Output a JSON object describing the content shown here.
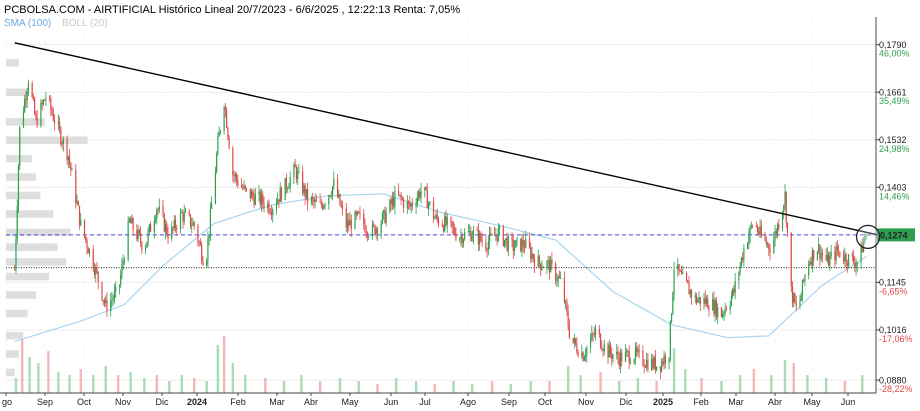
{
  "header": {
    "title": "PCBOLSA.COM - AIRTIFICIAL Histórico Lineal 20/7/2023 - 6/6/2025 , 12:22:13 Renta: 7,05%",
    "sma_label": "SMA (100)",
    "boll_label": "BOLL (20)"
  },
  "colors": {
    "up": "#2e9e4e",
    "down": "#e04848",
    "sma": "#a8d4f0",
    "trendline": "#000000",
    "resistance": "#4a4ae0",
    "support": "#000000",
    "price_box": "#2e9e4e",
    "pct_pos": "#2e9e4e",
    "pct_neg": "#e04848",
    "profile": "#d8d8d8",
    "boll_text": "#c8c8c8"
  },
  "chart_data": {
    "type": "candlestick",
    "title": "PCBOLSA.COM - AIRTIFICIAL Histórico Lineal 20/7/2023 - 6/6/2025 , 12:22:13 Renta: 7,05%",
    "x_ticks": [
      "go",
      "Sep",
      "Oct",
      "Nov",
      "Dic",
      "2024",
      "Feb",
      "Mar",
      "Abr",
      "May",
      "Jun",
      "Jul",
      "Ago",
      "Sep",
      "Oct",
      "Nov",
      "Dic",
      "2025",
      "Feb",
      "Mar",
      "Abr",
      "May",
      "Jun"
    ],
    "ylim": [
      0.0845,
      0.1865
    ],
    "y_ticks": [
      {
        "value": 0.179,
        "label": "0,1790",
        "pct": "46,00%"
      },
      {
        "value": 0.1661,
        "label": "0,1661",
        "pct": "35,49%"
      },
      {
        "value": 0.1532,
        "label": "0,1532",
        "pct": "24,98%"
      },
      {
        "value": 0.1403,
        "label": "0,1403",
        "pct": "14,46%"
      },
      {
        "value": 0.1274,
        "label": "0,1274",
        "pct": ""
      },
      {
        "value": 0.1145,
        "label": "0,1145",
        "pct": "-6,65%"
      },
      {
        "value": 0.1016,
        "label": "0,1016",
        "pct": "-17,06%"
      },
      {
        "value": 0.088,
        "label": "0,0880",
        "pct": "-28,22%"
      }
    ],
    "last_price": {
      "value": 0.1274,
      "label": "0,1274"
    },
    "resistance": 0.1274,
    "support": 0.1185,
    "trendline": {
      "start": {
        "x": "2023-07-24",
        "y": 0.1795
      },
      "end": {
        "x": "2025-06-06",
        "y": 0.1278
      }
    },
    "sma_series": {
      "name": "SMA (100)",
      "points": [
        {
          "x": "2023-07-24",
          "y": 0.0985
        },
        {
          "x": "2023-09-15",
          "y": 0.104
        },
        {
          "x": "2023-10-20",
          "y": 0.1085
        },
        {
          "x": "2023-11-20",
          "y": 0.119
        },
        {
          "x": "2023-12-31",
          "y": 0.1305
        },
        {
          "x": "2024-02-15",
          "y": 0.1355
        },
        {
          "x": "2024-03-31",
          "y": 0.138
        },
        {
          "x": "2024-05-15",
          "y": 0.1385
        },
        {
          "x": "2024-06-30",
          "y": 0.1335
        },
        {
          "x": "2024-08-15",
          "y": 0.13
        },
        {
          "x": "2024-09-30",
          "y": 0.126
        },
        {
          "x": "2024-11-15",
          "y": 0.112
        },
        {
          "x": "2025-01-01",
          "y": 0.103
        },
        {
          "x": "2025-02-15",
          "y": 0.0995
        },
        {
          "x": "2025-03-20",
          "y": 0.1
        },
        {
          "x": "2025-05-01",
          "y": 0.1135
        },
        {
          "x": "2025-06-06",
          "y": 0.1215
        }
      ]
    },
    "price_series": {
      "name": "AIRTIFICIAL",
      "points": [
        {
          "x": "2023-07-24",
          "y": 0.118
        },
        {
          "x": "2023-07-28",
          "y": 0.156
        },
        {
          "x": "2023-08-04",
          "y": 0.17
        },
        {
          "x": "2023-08-10",
          "y": 0.158
        },
        {
          "x": "2023-08-18",
          "y": 0.165
        },
        {
          "x": "2023-08-28",
          "y": 0.156
        },
        {
          "x": "2023-09-05",
          "y": 0.149
        },
        {
          "x": "2023-09-15",
          "y": 0.13
        },
        {
          "x": "2023-09-25",
          "y": 0.12
        },
        {
          "x": "2023-10-05",
          "y": 0.108
        },
        {
          "x": "2023-10-15",
          "y": 0.112
        },
        {
          "x": "2023-10-24",
          "y": 0.131
        },
        {
          "x": "2023-11-05",
          "y": 0.124
        },
        {
          "x": "2023-11-15",
          "y": 0.135
        },
        {
          "x": "2023-11-25",
          "y": 0.127
        },
        {
          "x": "2023-12-05",
          "y": 0.133
        },
        {
          "x": "2023-12-15",
          "y": 0.13
        },
        {
          "x": "2023-12-24",
          "y": 0.119
        },
        {
          "x": "2024-01-03",
          "y": 0.152
        },
        {
          "x": "2024-01-08",
          "y": 0.164
        },
        {
          "x": "2024-01-15",
          "y": 0.144
        },
        {
          "x": "2024-01-25",
          "y": 0.139
        },
        {
          "x": "2024-02-05",
          "y": 0.137
        },
        {
          "x": "2024-02-15",
          "y": 0.135
        },
        {
          "x": "2024-02-25",
          "y": 0.14
        },
        {
          "x": "2024-03-05",
          "y": 0.145
        },
        {
          "x": "2024-03-15",
          "y": 0.137
        },
        {
          "x": "2024-03-25",
          "y": 0.135
        },
        {
          "x": "2024-04-05",
          "y": 0.141
        },
        {
          "x": "2024-04-15",
          "y": 0.13
        },
        {
          "x": "2024-04-25",
          "y": 0.132
        },
        {
          "x": "2024-05-05",
          "y": 0.128
        },
        {
          "x": "2024-05-15",
          "y": 0.132
        },
        {
          "x": "2024-05-25",
          "y": 0.138
        },
        {
          "x": "2024-06-05",
          "y": 0.135
        },
        {
          "x": "2024-06-15",
          "y": 0.14
        },
        {
          "x": "2024-06-25",
          "y": 0.132
        },
        {
          "x": "2024-07-05",
          "y": 0.13
        },
        {
          "x": "2024-07-15",
          "y": 0.127
        },
        {
          "x": "2024-07-25",
          "y": 0.128
        },
        {
          "x": "2024-08-05",
          "y": 0.125
        },
        {
          "x": "2024-08-15",
          "y": 0.128
        },
        {
          "x": "2024-08-25",
          "y": 0.124
        },
        {
          "x": "2024-09-05",
          "y": 0.125
        },
        {
          "x": "2024-09-15",
          "y": 0.12
        },
        {
          "x": "2024-09-25",
          "y": 0.119
        },
        {
          "x": "2024-10-05",
          "y": 0.114
        },
        {
          "x": "2024-10-12",
          "y": 0.099
        },
        {
          "x": "2024-10-22",
          "y": 0.095
        },
        {
          "x": "2024-11-01",
          "y": 0.101
        },
        {
          "x": "2024-11-10",
          "y": 0.096
        },
        {
          "x": "2024-11-20",
          "y": 0.094
        },
        {
          "x": "2024-12-01",
          "y": 0.095
        },
        {
          "x": "2024-12-12",
          "y": 0.093
        },
        {
          "x": "2024-12-22",
          "y": 0.092
        },
        {
          "x": "2024-12-30",
          "y": 0.096
        },
        {
          "x": "2025-01-03",
          "y": 0.119
        },
        {
          "x": "2025-01-10",
          "y": 0.115
        },
        {
          "x": "2025-01-20",
          "y": 0.11
        },
        {
          "x": "2025-02-01",
          "y": 0.109
        },
        {
          "x": "2025-02-10",
          "y": 0.106
        },
        {
          "x": "2025-02-20",
          "y": 0.112
        },
        {
          "x": "2025-03-01",
          "y": 0.125
        },
        {
          "x": "2025-03-08",
          "y": 0.131
        },
        {
          "x": "2025-03-15",
          "y": 0.126
        },
        {
          "x": "2025-03-22",
          "y": 0.124
        },
        {
          "x": "2025-03-28",
          "y": 0.131
        },
        {
          "x": "2025-04-02",
          "y": 0.138
        },
        {
          "x": "2025-04-07",
          "y": 0.112
        },
        {
          "x": "2025-04-12",
          "y": 0.106
        },
        {
          "x": "2025-04-20",
          "y": 0.12
        },
        {
          "x": "2025-04-28",
          "y": 0.124
        },
        {
          "x": "2025-05-06",
          "y": 0.12
        },
        {
          "x": "2025-05-14",
          "y": 0.123
        },
        {
          "x": "2025-05-22",
          "y": 0.121
        },
        {
          "x": "2025-05-30",
          "y": 0.12
        },
        {
          "x": "2025-06-06",
          "y": 0.1274
        }
      ]
    },
    "volume": [
      {
        "x": "2023-07-25",
        "v": 0.25
      },
      {
        "x": "2023-07-30",
        "v": 0.9
      },
      {
        "x": "2023-08-05",
        "v": 0.6
      },
      {
        "x": "2023-08-12",
        "v": 0.5
      },
      {
        "x": "2023-08-20",
        "v": 0.7
      },
      {
        "x": "2023-08-28",
        "v": 0.35
      },
      {
        "x": "2023-09-06",
        "v": 0.3
      },
      {
        "x": "2023-09-15",
        "v": 0.4
      },
      {
        "x": "2023-09-25",
        "v": 0.3
      },
      {
        "x": "2023-10-05",
        "v": 0.45
      },
      {
        "x": "2023-10-15",
        "v": 0.3
      },
      {
        "x": "2023-10-25",
        "v": 0.35
      },
      {
        "x": "2023-11-05",
        "v": 0.25
      },
      {
        "x": "2023-11-15",
        "v": 0.3
      },
      {
        "x": "2023-11-25",
        "v": 0.2
      },
      {
        "x": "2023-12-05",
        "v": 0.3
      },
      {
        "x": "2023-12-15",
        "v": 0.25
      },
      {
        "x": "2023-12-25",
        "v": 0.2
      },
      {
        "x": "2024-01-03",
        "v": 0.8
      },
      {
        "x": "2024-01-08",
        "v": 0.95
      },
      {
        "x": "2024-01-15",
        "v": 0.5
      },
      {
        "x": "2024-01-25",
        "v": 0.3
      },
      {
        "x": "2024-02-10",
        "v": 0.25
      },
      {
        "x": "2024-02-25",
        "v": 0.2
      },
      {
        "x": "2024-03-10",
        "v": 0.3
      },
      {
        "x": "2024-03-25",
        "v": 0.2
      },
      {
        "x": "2024-04-10",
        "v": 0.25
      },
      {
        "x": "2024-04-25",
        "v": 0.2
      },
      {
        "x": "2024-05-10",
        "v": 0.15
      },
      {
        "x": "2024-05-25",
        "v": 0.25
      },
      {
        "x": "2024-06-10",
        "v": 0.2
      },
      {
        "x": "2024-06-25",
        "v": 0.15
      },
      {
        "x": "2024-07-10",
        "v": 0.2
      },
      {
        "x": "2024-07-25",
        "v": 0.15
      },
      {
        "x": "2024-08-10",
        "v": 0.2
      },
      {
        "x": "2024-08-25",
        "v": 0.15
      },
      {
        "x": "2024-09-10",
        "v": 0.2
      },
      {
        "x": "2024-09-25",
        "v": 0.2
      },
      {
        "x": "2024-10-10",
        "v": 0.45
      },
      {
        "x": "2024-10-20",
        "v": 0.3
      },
      {
        "x": "2024-11-05",
        "v": 0.35
      },
      {
        "x": "2024-11-20",
        "v": 0.2
      },
      {
        "x": "2024-12-05",
        "v": 0.25
      },
      {
        "x": "2024-12-20",
        "v": 0.2
      },
      {
        "x": "2025-01-03",
        "v": 0.75
      },
      {
        "x": "2025-01-12",
        "v": 0.4
      },
      {
        "x": "2025-01-25",
        "v": 0.25
      },
      {
        "x": "2025-02-10",
        "v": 0.2
      },
      {
        "x": "2025-02-25",
        "v": 0.3
      },
      {
        "x": "2025-03-08",
        "v": 0.4
      },
      {
        "x": "2025-03-22",
        "v": 0.3
      },
      {
        "x": "2025-04-02",
        "v": 0.55
      },
      {
        "x": "2025-04-09",
        "v": 0.5
      },
      {
        "x": "2025-04-20",
        "v": 0.3
      },
      {
        "x": "2025-05-05",
        "v": 0.25
      },
      {
        "x": "2025-05-20",
        "v": 0.2
      },
      {
        "x": "2025-06-03",
        "v": 0.3
      }
    ],
    "volume_profile": [
      {
        "y": 0.174,
        "w": 0.15
      },
      {
        "y": 0.166,
        "w": 0.25
      },
      {
        "y": 0.158,
        "w": 0.45
      },
      {
        "y": 0.153,
        "w": 0.95
      },
      {
        "y": 0.148,
        "w": 0.3
      },
      {
        "y": 0.143,
        "w": 0.35
      },
      {
        "y": 0.138,
        "w": 0.4
      },
      {
        "y": 0.133,
        "w": 0.55
      },
      {
        "y": 0.128,
        "w": 0.75
      },
      {
        "y": 0.124,
        "w": 0.6
      },
      {
        "y": 0.12,
        "w": 0.7
      },
      {
        "y": 0.116,
        "w": 0.5
      },
      {
        "y": 0.111,
        "w": 0.35
      },
      {
        "y": 0.106,
        "w": 0.25
      },
      {
        "y": 0.1,
        "w": 0.2
      },
      {
        "y": 0.095,
        "w": 0.15
      },
      {
        "y": 0.09,
        "w": 0.1
      }
    ],
    "grid": true
  }
}
